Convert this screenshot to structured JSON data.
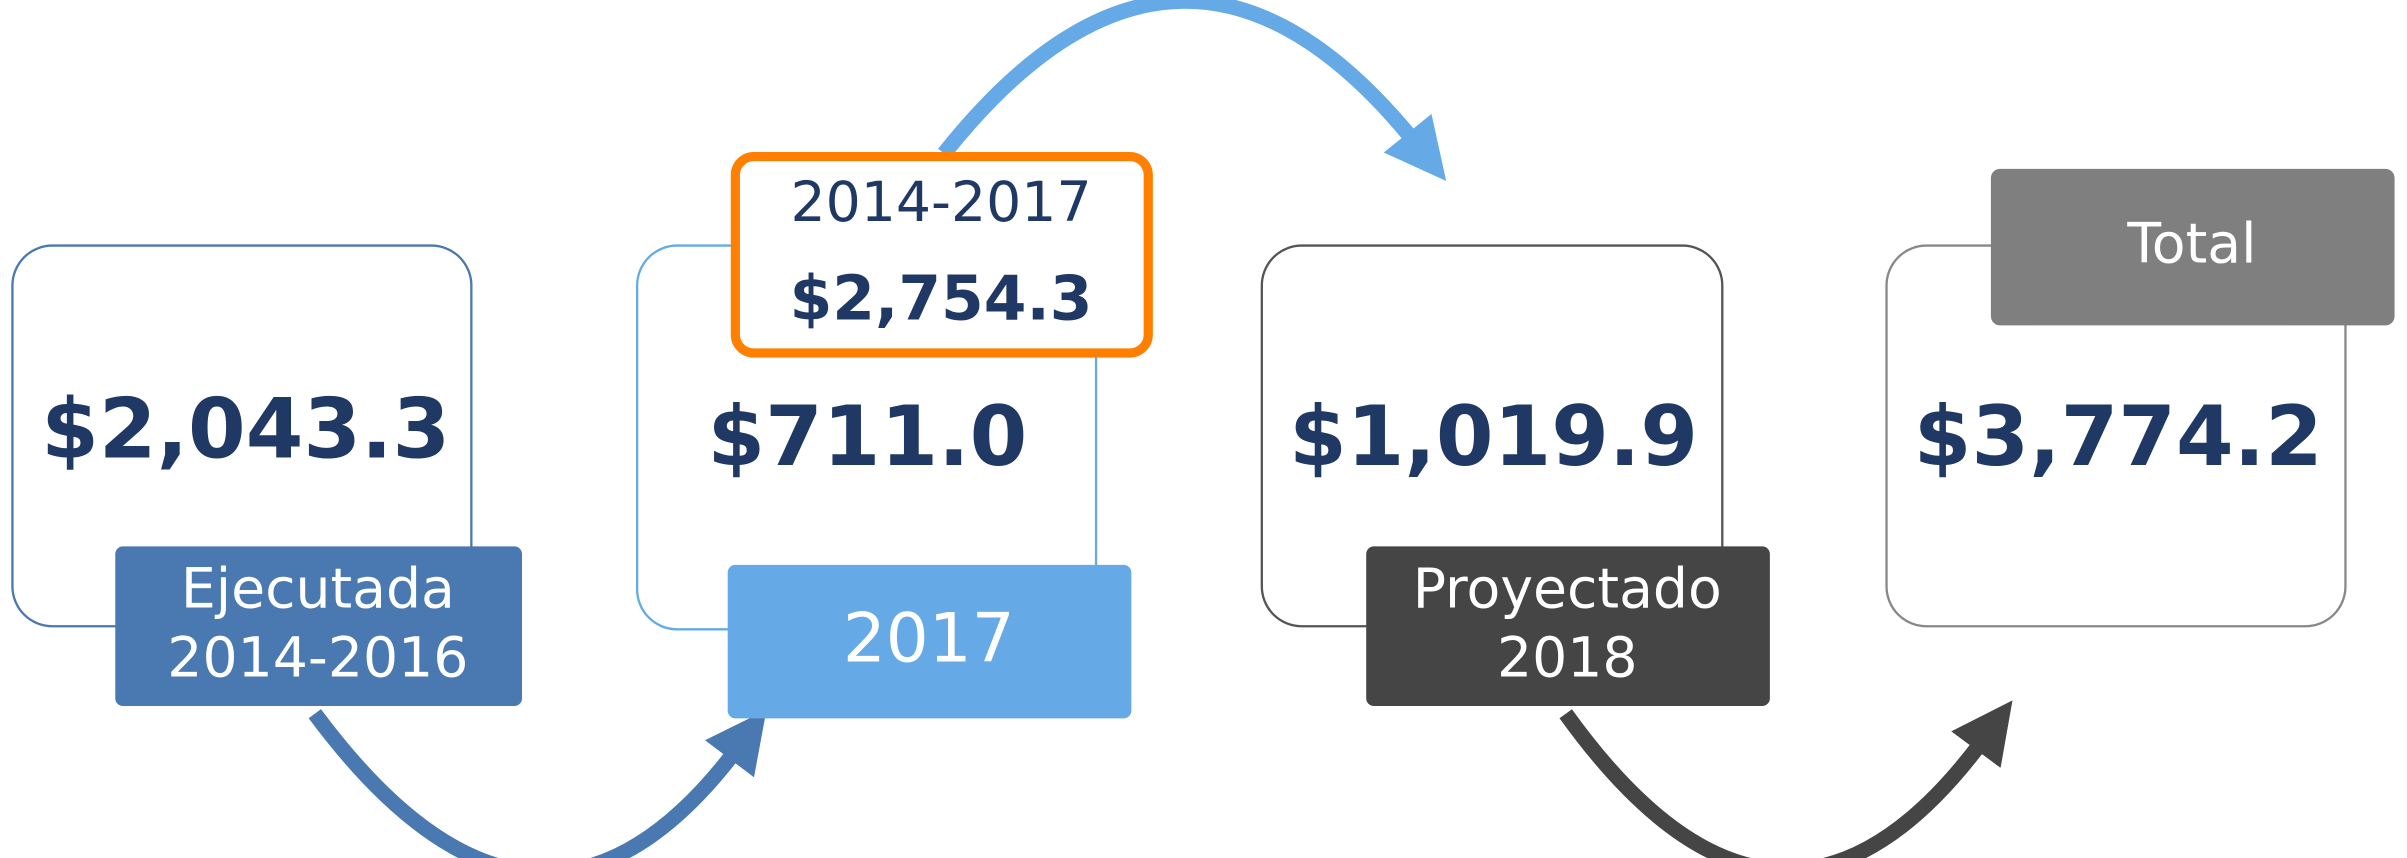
{
  "nodes": [
    {
      "amount": "$2,043.3",
      "label_lines": [
        "Ejecutada",
        "2014-2016"
      ]
    },
    {
      "amount": "$711.0",
      "label_lines": [
        "2017"
      ]
    },
    {
      "amount": "$1,019.9",
      "label_lines": [
        "Proyectado",
        "2018"
      ]
    },
    {
      "amount": "$3,774.2",
      "label_lines": [
        "Total"
      ]
    }
  ],
  "callout": {
    "period": "2014-2017",
    "amount": "$2,754.3"
  }
}
